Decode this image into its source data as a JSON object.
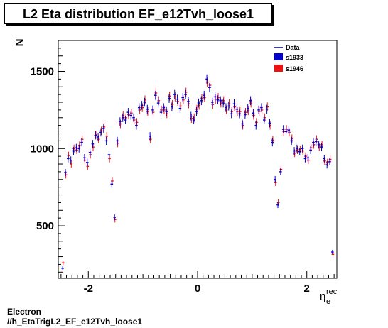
{
  "title": "L2 Eta distribution EF_e12Tvh_loose1",
  "footer": {
    "line1": "Electron",
    "line2": "//h_EtaTrigL2_EF_e12Tvh_loose1"
  },
  "colors": {
    "s1933": "#0000cc",
    "s1946": "#ee1111",
    "data": "#000080"
  },
  "chart_data": {
    "type": "scatter",
    "title": "L2 Eta distribution EF_e12Tvh_loose1",
    "xlabel": "η_e^rec",
    "ylabel": "N",
    "xlim": [
      -2.55,
      2.55
    ],
    "ylim": [
      160,
      1700
    ],
    "xticks": [
      -2,
      0,
      2
    ],
    "yticks": [
      500,
      1000,
      1500
    ],
    "legend": {
      "placement": "top-right",
      "entries": [
        "Data",
        "s1933",
        "s1946"
      ]
    },
    "x": [
      -2.47,
      -2.42,
      -2.37,
      -2.32,
      -2.27,
      -2.22,
      -2.17,
      -2.12,
      -2.07,
      -2.02,
      -1.97,
      -1.92,
      -1.87,
      -1.82,
      -1.77,
      -1.72,
      -1.67,
      -1.62,
      -1.57,
      -1.52,
      -1.47,
      -1.42,
      -1.37,
      -1.32,
      -1.27,
      -1.22,
      -1.17,
      -1.12,
      -1.07,
      -1.02,
      -0.97,
      -0.92,
      -0.87,
      -0.82,
      -0.77,
      -0.72,
      -0.67,
      -0.62,
      -0.57,
      -0.52,
      -0.47,
      -0.42,
      -0.37,
      -0.32,
      -0.27,
      -0.22,
      -0.17,
      -0.12,
      -0.07,
      -0.02,
      0.02,
      0.07,
      0.12,
      0.17,
      0.22,
      0.27,
      0.32,
      0.37,
      0.42,
      0.47,
      0.52,
      0.57,
      0.62,
      0.67,
      0.72,
      0.77,
      0.82,
      0.87,
      0.92,
      0.97,
      1.02,
      1.07,
      1.12,
      1.17,
      1.22,
      1.27,
      1.32,
      1.37,
      1.42,
      1.47,
      1.52,
      1.57,
      1.62,
      1.67,
      1.72,
      1.77,
      1.82,
      1.87,
      1.92,
      1.97,
      2.02,
      2.07,
      2.12,
      2.17,
      2.22,
      2.27,
      2.32,
      2.37,
      2.42,
      2.47
    ],
    "series": [
      {
        "name": "s1933",
        "values": [
          225,
          845,
          935,
          925,
          985,
          1005,
          1000,
          1040,
          940,
          910,
          975,
          1030,
          1085,
          1075,
          1105,
          1130,
          1050,
          960,
          770,
          555,
          1050,
          1175,
          1200,
          1185,
          1235,
          1215,
          1200,
          1150,
          1265,
          1280,
          1300,
          1255,
          1080,
          1250,
          1345,
          1295,
          1235,
          1265,
          1240,
          1325,
          1270,
          1350,
          1320,
          1260,
          1330,
          1350,
          1305,
          1210,
          1185,
          1240,
          1295,
          1310,
          1345,
          1450,
          1395,
          1300,
          1335,
          1315,
          1310,
          1295,
          1265,
          1275,
          1225,
          1290,
          1255,
          1225,
          1160,
          1220,
          1260,
          1310,
          1230,
          1150,
          1250,
          1265,
          1185,
          1255,
          1165,
          1040,
          800,
          635,
          850,
          1125,
          1110,
          1120,
          1050,
          985,
          1000,
          980,
          1000,
          935,
          940,
          990,
          1040,
          1045,
          1025,
          1010,
          935,
          895,
          915,
          330
        ]
      },
      {
        "name": "s1946",
        "values": [
          260,
          830,
          955,
          900,
          1000,
          990,
          1020,
          1060,
          925,
          885,
          960,
          1010,
          1090,
          1060,
          1115,
          1140,
          1080,
          935,
          790,
          540,
          1035,
          1160,
          1215,
          1200,
          1220,
          1230,
          1185,
          1170,
          1250,
          1265,
          1315,
          1240,
          1060,
          1235,
          1360,
          1310,
          1250,
          1250,
          1225,
          1340,
          1285,
          1335,
          1305,
          1275,
          1315,
          1365,
          1290,
          1195,
          1200,
          1255,
          1280,
          1325,
          1330,
          1430,
          1410,
          1285,
          1320,
          1330,
          1295,
          1310,
          1250,
          1290,
          1240,
          1270,
          1240,
          1240,
          1150,
          1235,
          1245,
          1295,
          1215,
          1170,
          1240,
          1250,
          1200,
          1270,
          1150,
          1055,
          780,
          650,
          865,
          1110,
          1125,
          1105,
          1065,
          970,
          990,
          995,
          985,
          950,
          925,
          1005,
          1025,
          1060,
          1010,
          1025,
          920,
          910,
          930,
          315
        ]
      }
    ]
  }
}
